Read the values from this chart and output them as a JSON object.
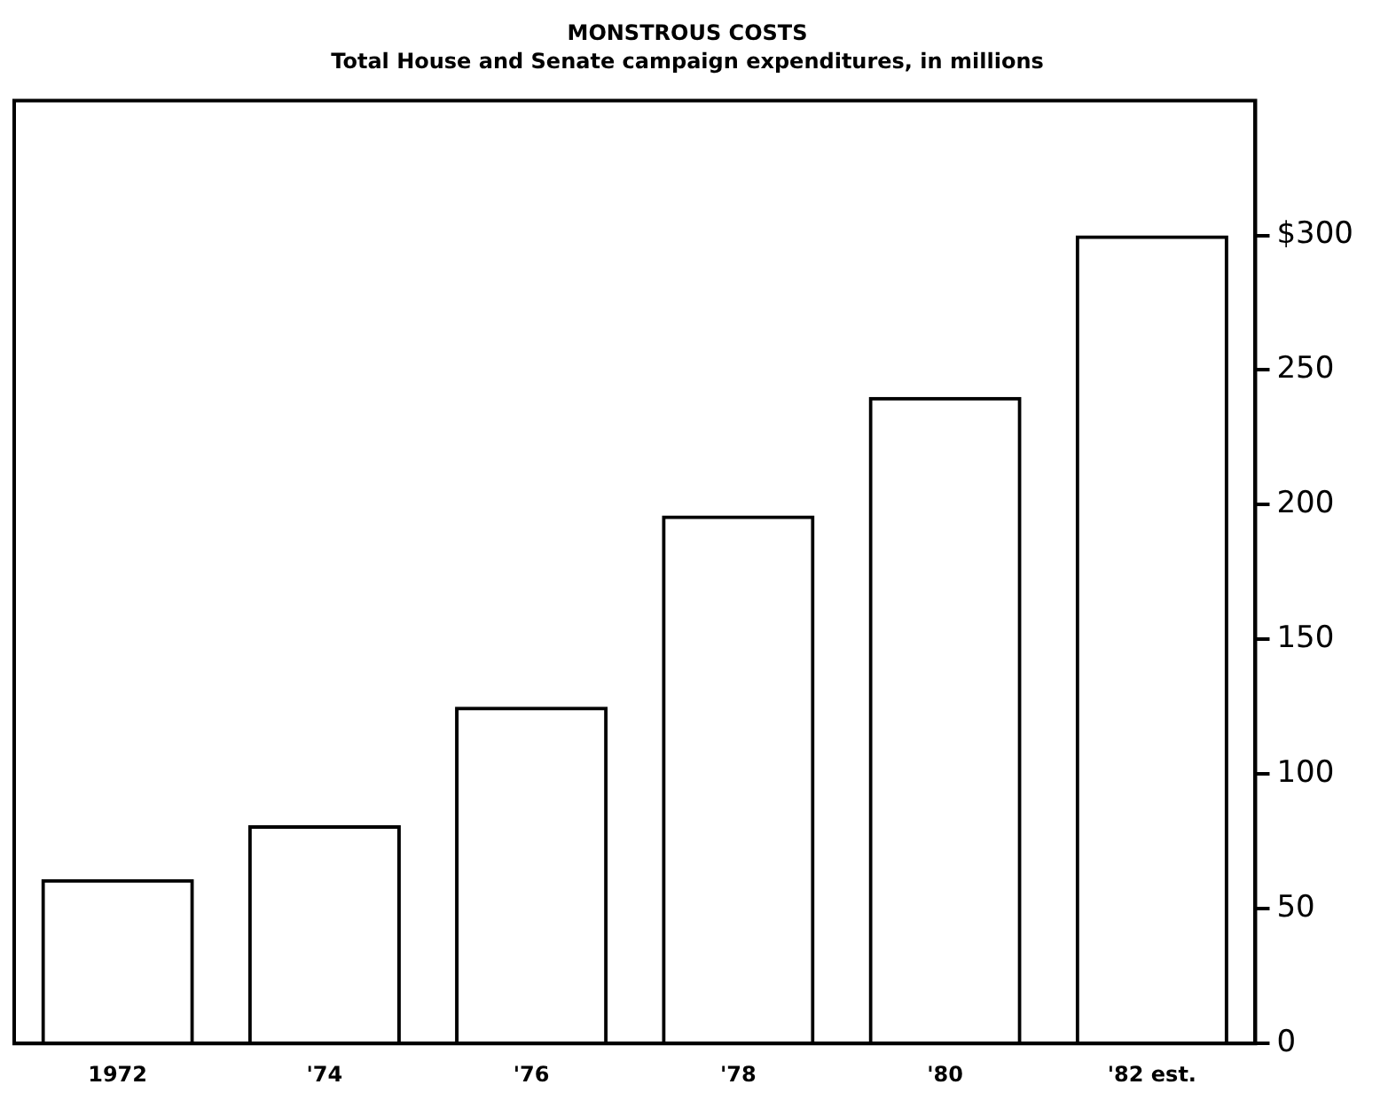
{
  "chart_data": {
    "type": "bar",
    "title": "MONSTROUS COSTS",
    "subtitle": "Total House and Senate campaign expenditures, in millions",
    "categories": [
      "1972",
      "'74",
      "'76",
      "'78",
      "'80",
      "'82 est."
    ],
    "values": [
      61,
      81,
      125,
      196,
      240,
      300
    ],
    "color": "#000000",
    "ylim": [
      0,
      350
    ],
    "yticks": [
      0,
      50,
      100,
      150,
      200,
      250,
      {
        "value": 300,
        "label": "$300"
      }
    ],
    "grid": false,
    "legend": false
  }
}
